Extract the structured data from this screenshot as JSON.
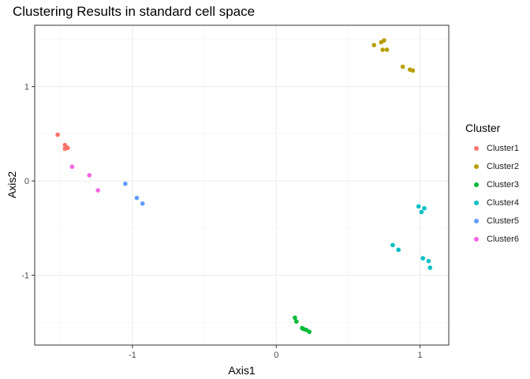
{
  "chart_data": {
    "type": "scatter",
    "title": "Clustering Results in standard cell space",
    "xlabel": "Axis1",
    "ylabel": "Axis2",
    "xlim": [
      -1.68,
      1.2
    ],
    "ylim": [
      -1.74,
      1.65
    ],
    "x_ticks": [
      -1,
      0,
      1
    ],
    "x_tick_labels": [
      "-1",
      "0",
      "1"
    ],
    "y_ticks": [
      -1,
      0,
      1
    ],
    "y_tick_labels": [
      "-1",
      "0",
      "1"
    ],
    "grid": true,
    "legend": {
      "title": "Cluster",
      "position": "right"
    },
    "series": [
      {
        "name": "Cluster1",
        "color": "#F8766D",
        "points": [
          [
            -1.52,
            0.49
          ],
          [
            -1.47,
            0.38
          ],
          [
            -1.46,
            0.36
          ],
          [
            -1.46,
            0.35
          ],
          [
            -1.47,
            0.34
          ],
          [
            -1.45,
            0.35
          ]
        ]
      },
      {
        "name": "Cluster2",
        "color": "#B79F00",
        "points": [
          [
            0.68,
            1.44
          ],
          [
            0.73,
            1.47
          ],
          [
            0.75,
            1.49
          ],
          [
            0.74,
            1.39
          ],
          [
            0.77,
            1.39
          ],
          [
            0.88,
            1.21
          ],
          [
            0.93,
            1.18
          ],
          [
            0.95,
            1.17
          ]
        ]
      },
      {
        "name": "Cluster3",
        "color": "#00BA38",
        "points": [
          [
            0.13,
            -1.45
          ],
          [
            0.14,
            -1.49
          ],
          [
            0.18,
            -1.56
          ],
          [
            0.19,
            -1.57
          ],
          [
            0.21,
            -1.58
          ],
          [
            0.23,
            -1.6
          ]
        ]
      },
      {
        "name": "Cluster4",
        "color": "#00BFC4",
        "points": [
          [
            0.99,
            -0.27
          ],
          [
            1.03,
            -0.29
          ],
          [
            1.01,
            -0.33
          ],
          [
            0.81,
            -0.68
          ],
          [
            0.85,
            -0.73
          ],
          [
            1.02,
            -0.82
          ],
          [
            1.06,
            -0.85
          ],
          [
            1.07,
            -0.92
          ]
        ]
      },
      {
        "name": "Cluster5",
        "color": "#619CFF",
        "points": [
          [
            -1.05,
            -0.03
          ],
          [
            -0.97,
            -0.18
          ],
          [
            -0.93,
            -0.24
          ]
        ]
      },
      {
        "name": "Cluster6",
        "color": "#F564E3",
        "points": [
          [
            -1.42,
            0.15
          ],
          [
            -1.3,
            0.06
          ],
          [
            -1.24,
            -0.1
          ]
        ]
      }
    ]
  }
}
